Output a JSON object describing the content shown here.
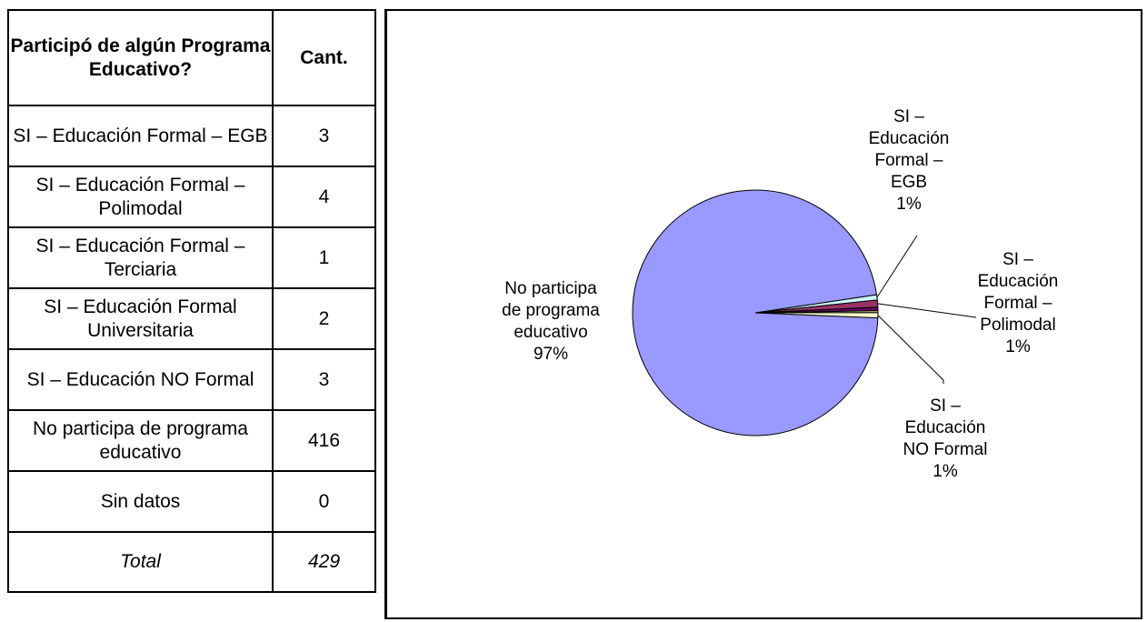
{
  "table": {
    "header": {
      "question": "Participó de algún Programa Educativo?",
      "count": "Cant."
    },
    "rows": [
      {
        "label": "SI – Educación Formal – EGB",
        "value": "3"
      },
      {
        "label": "SI – Educación Formal – Polimodal",
        "value": "4"
      },
      {
        "label": "SI – Educación Formal – Terciaria",
        "value": "1"
      },
      {
        "label": "SI – Educación Formal Universitaria",
        "value": "2"
      },
      {
        "label": "SI – Educación NO Formal",
        "value": "3"
      },
      {
        "label": "No participa de programa educativo",
        "value": "416"
      },
      {
        "label": "Sin datos",
        "value": "0"
      }
    ],
    "total": {
      "label": "Total",
      "value": "429"
    }
  },
  "chart_data": {
    "type": "pie",
    "title": "",
    "slices": [
      {
        "name": "No participa de programa educativo",
        "value": 416,
        "label_lines": [
          "No participa",
          "de programa",
          "educativo",
          "97%"
        ],
        "color": "#9999ff"
      },
      {
        "name": "SI – Educación Formal – EGB",
        "value": 3,
        "label_lines": [
          "SI –",
          "Educación",
          "Formal –",
          "EGB",
          "1%"
        ],
        "color": "#ccffff"
      },
      {
        "name": "SI – Educación Formal – Polimodal",
        "value": 4,
        "label_lines": [
          "SI –",
          "Educación",
          "Formal –",
          "Polimodal",
          "1%"
        ],
        "color": "#993366"
      },
      {
        "name": "SI – Educación Formal – Terciaria",
        "value": 1,
        "label_lines": [],
        "color": "#ffff99"
      },
      {
        "name": "SI – Educación Formal Universitaria",
        "value": 2,
        "label_lines": [],
        "color": "#660066"
      },
      {
        "name": "SI – Educación NO Formal",
        "value": 3,
        "label_lines": [
          "SI –",
          "Educación",
          "NO Formal",
          "1%"
        ],
        "color": "#ffffcc"
      }
    ],
    "legend": "none"
  }
}
